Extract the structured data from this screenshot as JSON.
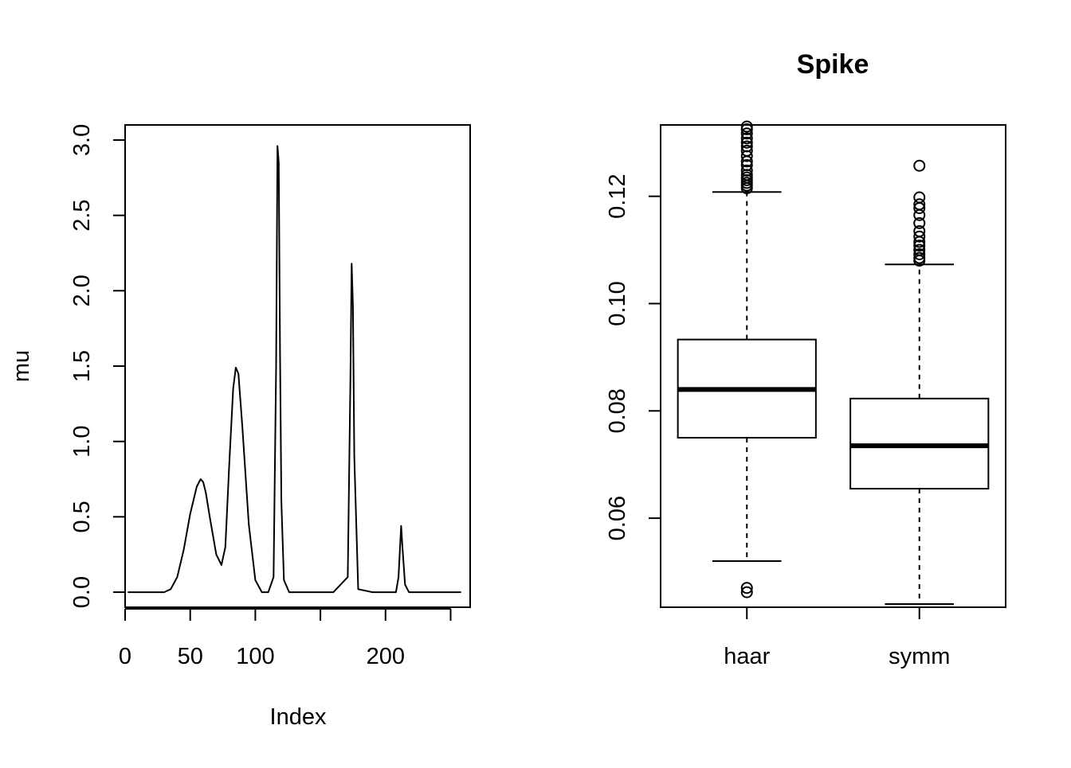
{
  "chart_data": [
    {
      "type": "line",
      "title": "",
      "xlabel": "Index",
      "ylabel": "mu",
      "xlim": [
        0,
        265
      ],
      "ylim": [
        -0.1,
        3.1
      ],
      "x_ticks": [
        0,
        50,
        100,
        150,
        200,
        250
      ],
      "x_tick_labels": [
        "0",
        "50",
        "100",
        "",
        "200",
        ""
      ],
      "y_ticks": [
        0.0,
        0.5,
        1.0,
        1.5,
        2.0,
        2.5,
        3.0
      ],
      "y_tick_labels": [
        "0.0",
        "0.5",
        "1.0",
        "1.5",
        "2.0",
        "2.5",
        "3.0"
      ],
      "series": [
        {
          "name": "mu",
          "x": [
            2,
            30,
            35,
            40,
            45,
            50,
            55,
            58,
            60,
            62,
            65,
            70,
            74,
            77,
            80,
            83,
            85,
            87,
            90,
            95,
            100,
            105,
            110,
            114,
            116,
            117,
            118,
            119,
            120,
            122,
            126,
            130,
            160,
            171,
            173,
            174,
            175,
            176,
            179,
            190,
            208,
            210,
            212,
            213,
            215,
            218,
            258
          ],
          "y": [
            0.0,
            0.0,
            0.02,
            0.1,
            0.28,
            0.52,
            0.7,
            0.75,
            0.73,
            0.66,
            0.5,
            0.25,
            0.18,
            0.3,
            0.85,
            1.35,
            1.49,
            1.45,
            1.1,
            0.45,
            0.08,
            0.0,
            0.0,
            0.1,
            1.5,
            2.96,
            2.85,
            1.6,
            0.6,
            0.08,
            0.0,
            0.0,
            0.0,
            0.1,
            1.4,
            2.18,
            1.9,
            0.9,
            0.02,
            0.0,
            0.0,
            0.1,
            0.44,
            0.3,
            0.05,
            0.0,
            0.0
          ]
        }
      ]
    },
    {
      "type": "boxplot",
      "title": "Spike",
      "xlabel": "",
      "ylabel": "",
      "categories": [
        "haar",
        "symm"
      ],
      "ylim": [
        0.0434,
        0.1333
      ],
      "y_ticks": [
        0.06,
        0.08,
        0.1,
        0.12
      ],
      "y_tick_labels": [
        "0.06",
        "0.08",
        "0.10",
        "0.12"
      ],
      "boxes": [
        {
          "name": "haar",
          "whisker_low": 0.052,
          "q1": 0.075,
          "median": 0.084,
          "q3": 0.0933,
          "whisker_high": 0.1208,
          "outliers": [
            0.0462,
            0.047,
            0.1215,
            0.122,
            0.1225,
            0.123,
            0.1235,
            0.124,
            0.1248,
            0.1258,
            0.1265,
            0.1275,
            0.1285,
            0.1293,
            0.13,
            0.1308,
            0.1317,
            0.1325,
            0.133
          ]
        },
        {
          "name": "symm",
          "whisker_low": 0.044,
          "q1": 0.0655,
          "median": 0.0735,
          "q3": 0.0823,
          "whisker_high": 0.1073,
          "outliers": [
            0.108,
            0.1085,
            0.1092,
            0.11,
            0.1108,
            0.1115,
            0.1125,
            0.1135,
            0.115,
            0.1165,
            0.1178,
            0.1185,
            0.1198,
            0.1257
          ]
        }
      ]
    }
  ]
}
